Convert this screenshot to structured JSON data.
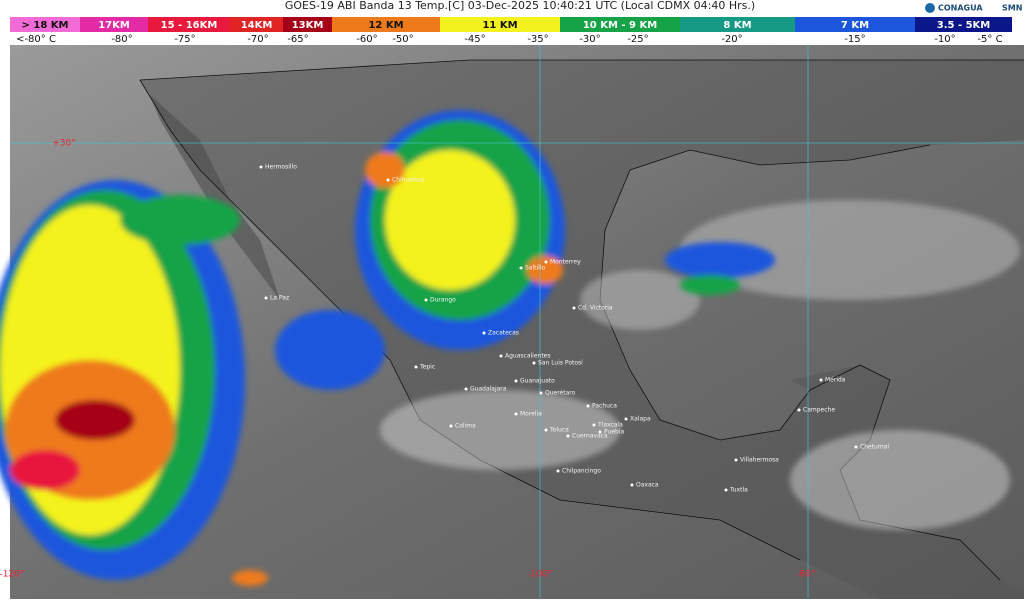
{
  "header": {
    "title": "GOES-19 ABI Banda 13 Temp.[C] 03-Dec-2025 10:40:21 UTC (Local CDMX  04:40 Hrs.)",
    "logos": [
      "CONAGUA",
      "SMN"
    ]
  },
  "legend": {
    "items": [
      {
        "label": "> 18 KM",
        "color": "#f26ad6"
      },
      {
        "label": "17KM",
        "color": "#e52aa6"
      },
      {
        "label": "15 - 16KM",
        "color": "#e8193d"
      },
      {
        "label": "14KM",
        "color": "#e02424"
      },
      {
        "label": "13KM",
        "color": "#a50018"
      },
      {
        "label": "12 KM",
        "color": "#ef7a1c"
      },
      {
        "label": "11 KM",
        "color": "#f4f21d"
      },
      {
        "label": "10 KM - 9 KM",
        "color": "#16a347"
      },
      {
        "label": "8 KM",
        "color": "#169a86"
      },
      {
        "label": "7 KM",
        "color": "#1c56dd"
      },
      {
        "label": "3.5 - 5KM",
        "color": "#0a168a"
      }
    ],
    "temperatures": [
      "<-80° C",
      "-80°",
      "-75°",
      "-70°",
      "-65°",
      "-60°",
      "-50°",
      "-45°",
      "-35°",
      "-30°",
      "-25°",
      "-20°",
      "-15°",
      "-10°",
      "-5° C"
    ]
  },
  "map": {
    "grid_labels": [
      "+30°",
      "-120°",
      "-100°",
      "-80°"
    ],
    "places": [
      "Hermosillo",
      "Chihuahua",
      "Monterrey",
      "Cd. Victoria",
      "Zacatecas",
      "San Luis Potosí",
      "Aguascalientes",
      "Tepic",
      "Guadalajara",
      "Guanajuato",
      "Querétaro",
      "Morelia",
      "Colima",
      "Pachuca",
      "Toluca",
      "Tlaxcala",
      "Puebla",
      "Cuernavaca",
      "Chilpancingo",
      "Oaxaca",
      "Xalapa",
      "Villahermosa",
      "Tuxtla",
      "Mérida",
      "Campeche",
      "Chetumal",
      "Durango",
      "La Paz",
      "Saltillo"
    ]
  }
}
